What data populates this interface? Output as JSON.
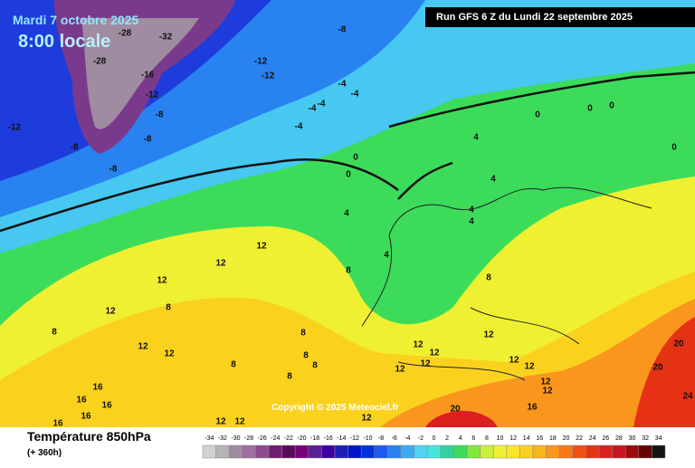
{
  "header": {
    "date": "Mardi 7 octobre 2025",
    "time": "8:00 locale",
    "run": "Run GFS 6 Z du Lundi 22 septembre 2025"
  },
  "copyright": "Copyright © 2025 Meteociel.fr",
  "footer": {
    "title": "Température 850hPa",
    "lead": "(+ 360h)"
  },
  "legend": {
    "values": [
      -34,
      -32,
      -30,
      -28,
      -26,
      -24,
      -22,
      -20,
      -18,
      -16,
      -14,
      -12,
      -10,
      -8,
      -6,
      -4,
      -2,
      0,
      2,
      4,
      6,
      8,
      10,
      12,
      14,
      16,
      18,
      20,
      22,
      24,
      26,
      28,
      30,
      32,
      34
    ],
    "colors": [
      "#d2d2d2",
      "#b4b4b4",
      "#a08ca0",
      "#a06ea0",
      "#8c4a8c",
      "#6e1e6e",
      "#5a0a5a",
      "#780078",
      "#5a1e96",
      "#3c00a0",
      "#1e1eb4",
      "#0014c8",
      "#0032dc",
      "#1e5af0",
      "#2882f0",
      "#3caaf0",
      "#50d2f0",
      "#46e6dc",
      "#32d2a0",
      "#3cdc5a",
      "#82e63c",
      "#c8f03c",
      "#f0f032",
      "#fae628",
      "#fad21e",
      "#fab41e",
      "#fa961e",
      "#fa7814",
      "#f05014",
      "#e63214",
      "#dc1e1e",
      "#c8141e",
      "#a00a0a",
      "#640000",
      "#141414"
    ]
  },
  "contour_labels": [
    -28,
    -28,
    -32,
    -8,
    -16,
    -12,
    -12,
    -12,
    -8,
    -12,
    -8,
    -8,
    -8,
    -4,
    -4,
    -4,
    -4,
    -4,
    0,
    0,
    0,
    0,
    0,
    0,
    4,
    4,
    4,
    4,
    4,
    4,
    12,
    12,
    8,
    12,
    12,
    8,
    8,
    12,
    12,
    8,
    12,
    12,
    12,
    12,
    12,
    8,
    8,
    8,
    8,
    8,
    12,
    12,
    12,
    12,
    20,
    20,
    24,
    20,
    16,
    16,
    16,
    16,
    16,
    12,
    12,
    16,
    12
  ]
}
